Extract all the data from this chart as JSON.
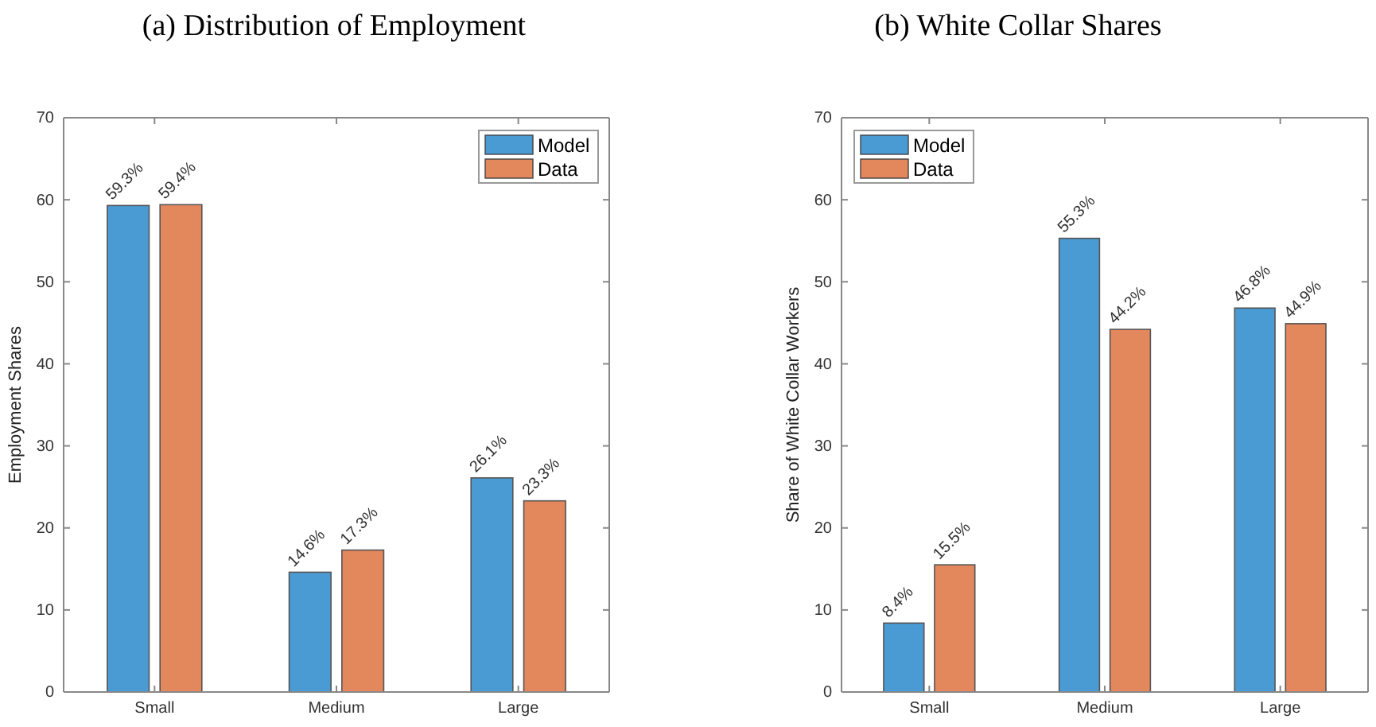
{
  "chart_data": [
    {
      "type": "bar",
      "title": "(a) Distribution of Employment",
      "ylabel": "Employment Shares",
      "categories": [
        "Small",
        "Medium",
        "Large"
      ],
      "series": [
        {
          "name": "Model",
          "color": "#4a9bd4",
          "values": [
            59.3,
            14.6,
            26.1
          ],
          "value_labels": [
            "59.3%",
            "14.6%",
            "26.1%"
          ]
        },
        {
          "name": "Data",
          "color": "#e3875d",
          "values": [
            59.4,
            17.3,
            23.3
          ],
          "value_labels": [
            "59.4%",
            "17.3%",
            "23.3%"
          ]
        }
      ],
      "ylim": [
        0,
        70
      ],
      "yticks": [
        0,
        10,
        20,
        30,
        40,
        50,
        60,
        70
      ],
      "legend": "top right"
    },
    {
      "type": "bar",
      "title": "(b) White Collar Shares",
      "ylabel": "Share of White Collar Workers",
      "categories": [
        "Small",
        "Medium",
        "Large"
      ],
      "series": [
        {
          "name": "Model",
          "color": "#4a9bd4",
          "values": [
            8.4,
            55.3,
            46.8
          ],
          "value_labels": [
            "8.4%",
            "55.3%",
            "46.8%"
          ]
        },
        {
          "name": "Data",
          "color": "#e3875d",
          "values": [
            15.5,
            44.2,
            44.9
          ],
          "value_labels": [
            "15.5%",
            "44.2%",
            "44.9%"
          ]
        }
      ],
      "ylim": [
        0,
        70
      ],
      "yticks": [
        0,
        10,
        20,
        30,
        40,
        50,
        60,
        70
      ],
      "legend": "top left"
    }
  ]
}
